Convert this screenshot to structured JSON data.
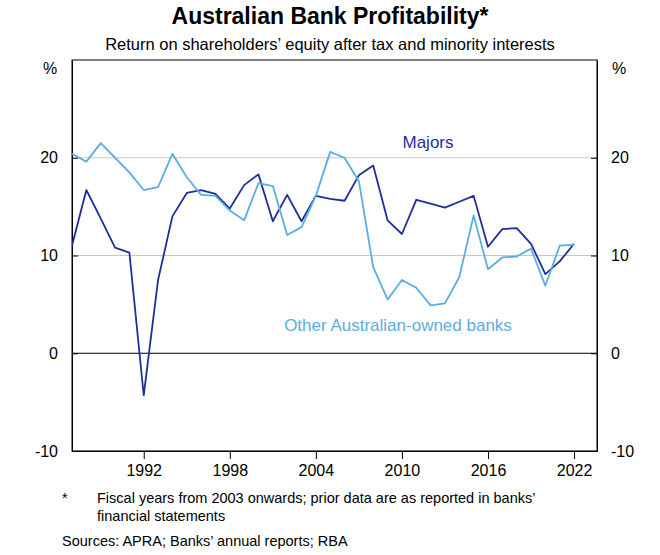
{
  "chart_data": {
    "type": "line",
    "title": "Australian Bank Profitability*",
    "subtitle": "Return on shareholders’ equity after tax and minority interests",
    "y_label": "%",
    "x": [
      1987,
      1988,
      1989,
      1990,
      1991,
      1992,
      1993,
      1994,
      1995,
      1996,
      1997,
      1998,
      1999,
      2000,
      2001,
      2002,
      2003,
      2004,
      2005,
      2006,
      2007,
      2008,
      2009,
      2010,
      2011,
      2012,
      2013,
      2014,
      2015,
      2016,
      2017,
      2018,
      2019,
      2020,
      2021,
      2022
    ],
    "series": [
      {
        "name": "Majors",
        "color": "#1f2f9a",
        "values": [
          11,
          16.7,
          13.8,
          10.8,
          10.3,
          -4.3,
          7.5,
          14,
          16.4,
          16.7,
          16.3,
          14.8,
          17.2,
          18.3,
          13.5,
          16.2,
          13.5,
          16.1,
          15.8,
          15.6,
          18.2,
          19.2,
          13.6,
          12.2,
          15.7,
          15.3,
          14.9,
          15.5,
          16.1,
          10.9,
          12.7,
          12.8,
          11.2,
          8.1,
          9.4,
          11.2
        ]
      },
      {
        "name": "Other Australian-owned banks",
        "color": "#5aaee0",
        "values": [
          20.4,
          19.6,
          21.5,
          20,
          18.5,
          16.7,
          17,
          20.4,
          18,
          16.2,
          16.1,
          14.6,
          13.6,
          17.4,
          17.1,
          12.1,
          12.9,
          16.1,
          20.6,
          20,
          17.6,
          8.8,
          5.5,
          7.5,
          6.7,
          4.9,
          5.1,
          7.8,
          14.1,
          8.6,
          9.8,
          9.9,
          10.7,
          6.9,
          11,
          11.1
        ]
      }
    ],
    "xlim": [
      1987,
      2023.6
    ],
    "xticks": [
      1992,
      1998,
      2004,
      2010,
      2016,
      2022
    ],
    "ylim": [
      -10,
      30
    ],
    "yticks": [
      -10,
      0,
      10,
      20
    ],
    "grid": true,
    "footnote_marker": "*",
    "footnote": [
      "Fiscal years from 2003 onwards; prior data are as reported in banks’",
      "financial statements"
    ],
    "source": "Sources: APRA; Banks’ annual reports; RBA"
  }
}
